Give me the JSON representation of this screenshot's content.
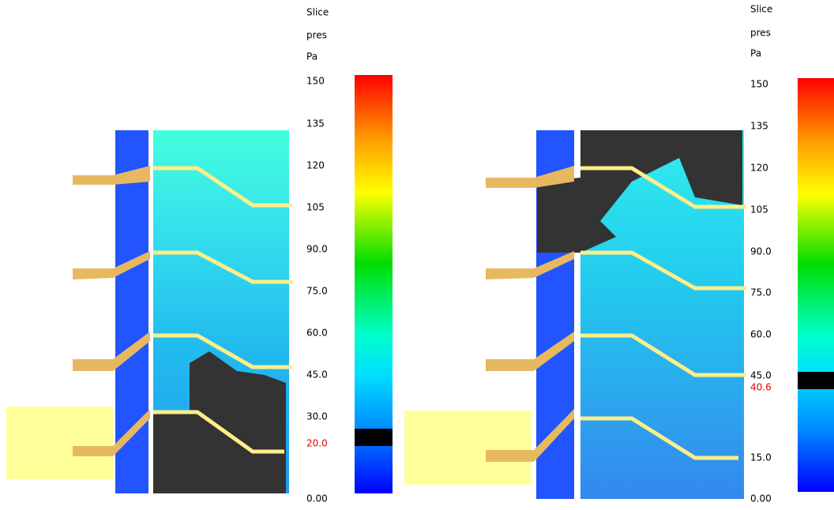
{
  "panels": [
    {
      "colorbar": {
        "title": [
          "Slice",
          "pres",
          "Pa"
        ],
        "ticks": [
          "150",
          "135",
          "120",
          "105",
          "90.0",
          "75.0",
          "60.0",
          "45.0",
          "30.0",
          "0.00"
        ],
        "highlight": "20.0"
      }
    },
    {
      "colorbar": {
        "title": [
          "Slice",
          "pres",
          "Pa"
        ],
        "ticks": [
          "150",
          "135",
          "120",
          "105",
          "90.0",
          "75.0",
          "60.0",
          "45.0",
          "15.0",
          "0.00"
        ],
        "highlight": "40.6"
      }
    }
  ]
}
